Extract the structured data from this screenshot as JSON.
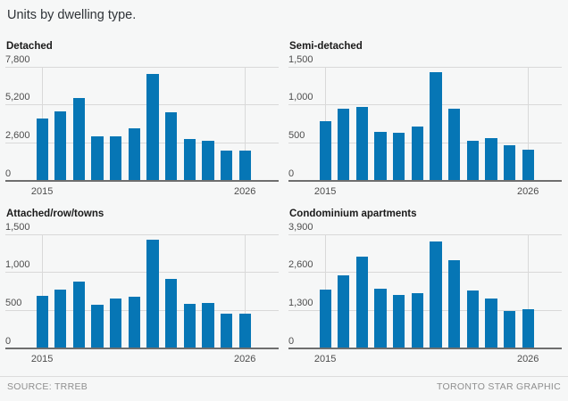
{
  "page": {
    "title": "Units by dwelling type.",
    "footer": {
      "source": "SOURCE: TRREB",
      "credit": "TORONTO STAR GRAPHIC"
    }
  },
  "colors": {
    "background": "#f6f7f7",
    "bar": "#0676b5",
    "gridline": "#d9d9d9",
    "axis_line": "#6e6e6e",
    "tick_label": "#4d4d4d",
    "chart_title": "#1a1a1a",
    "page_title": "#2f3338",
    "footer_text": "#8e8e8e",
    "footer_rule": "#dcdcdc"
  },
  "chart_data": [
    {
      "type": "bar",
      "title": "Detached",
      "categories": [
        "2015",
        "2016",
        "2017",
        "2018",
        "2019",
        "2020",
        "2021",
        "2022",
        "2023",
        "2024",
        "2025",
        "2026"
      ],
      "values": [
        4280,
        4770,
        5670,
        3030,
        3060,
        3600,
        7300,
        4700,
        2870,
        2770,
        2050,
        2100
      ],
      "ylim": [
        0,
        7800
      ],
      "yticks": [
        0,
        2600,
        5200,
        7800
      ],
      "ytick_labels": [
        "0",
        "2,600",
        "5,200",
        "7,800"
      ],
      "xtick_labels": [
        "2015",
        "2026"
      ],
      "grid": true,
      "legend": "none"
    },
    {
      "type": "bar",
      "title": "Semi-detached",
      "categories": [
        "2015",
        "2016",
        "2017",
        "2018",
        "2019",
        "2020",
        "2021",
        "2022",
        "2023",
        "2024",
        "2025",
        "2026"
      ],
      "values": [
        785,
        950,
        970,
        650,
        630,
        715,
        1435,
        950,
        530,
        560,
        465,
        410
      ],
      "ylim": [
        0,
        1500
      ],
      "yticks": [
        0,
        500,
        1000,
        1500
      ],
      "ytick_labels": [
        "0",
        "500",
        "1,000",
        "1,500"
      ],
      "xtick_labels": [
        "2015",
        "2026"
      ],
      "grid": true,
      "legend": "none"
    },
    {
      "type": "bar",
      "title": "Attached/row/towns",
      "categories": [
        "2015",
        "2016",
        "2017",
        "2018",
        "2019",
        "2020",
        "2021",
        "2022",
        "2023",
        "2024",
        "2025",
        "2026"
      ],
      "values": [
        690,
        775,
        880,
        580,
        660,
        675,
        1430,
        920,
        585,
        600,
        455,
        460
      ],
      "ylim": [
        0,
        1500
      ],
      "yticks": [
        0,
        500,
        1000,
        1500
      ],
      "ytick_labels": [
        "0",
        "500",
        "1,000",
        "1,500"
      ],
      "xtick_labels": [
        "2015",
        "2026"
      ],
      "grid": true,
      "legend": "none"
    },
    {
      "type": "bar",
      "title": "Condominium apartments",
      "categories": [
        "2015",
        "2016",
        "2017",
        "2018",
        "2019",
        "2020",
        "2021",
        "2022",
        "2023",
        "2024",
        "2025",
        "2026"
      ],
      "values": [
        2000,
        2500,
        3130,
        2040,
        1840,
        1890,
        3670,
        3030,
        1970,
        1700,
        1270,
        1340
      ],
      "ylim": [
        0,
        3900
      ],
      "yticks": [
        0,
        1300,
        2600,
        3900
      ],
      "ytick_labels": [
        "0",
        "1,300",
        "2,600",
        "3,900"
      ],
      "xtick_labels": [
        "2015",
        "2026"
      ],
      "grid": true,
      "legend": "none"
    }
  ]
}
